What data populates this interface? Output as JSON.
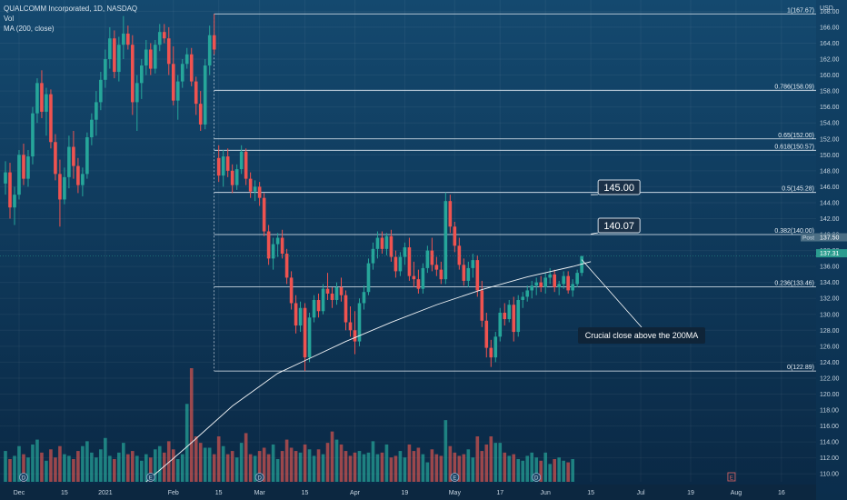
{
  "legend": {
    "symbol": "QUALCOMM Incorporated, 1D, NASDAQ",
    "vol": "Vol",
    "ma": "MA (200, close)"
  },
  "currency": "USD",
  "chart_data": {
    "type": "candlestick",
    "y_axis": {
      "range": [
        109,
        168.5
      ],
      "ticks": [
        110,
        112,
        114,
        116,
        118,
        120,
        122,
        124,
        126,
        128,
        130,
        132,
        134,
        136,
        138,
        140,
        142,
        144,
        146,
        148,
        150,
        152,
        154,
        156,
        158,
        160,
        162,
        164,
        166,
        168
      ],
      "position": "right"
    },
    "x_axis": {
      "labels": [
        {
          "label": "Dec",
          "index": 3
        },
        {
          "label": "15",
          "index": 13
        },
        {
          "label": "2021",
          "index": 22
        },
        {
          "label": "Feb",
          "index": 37
        },
        {
          "label": "15",
          "index": 47
        },
        {
          "label": "Mar",
          "index": 56
        },
        {
          "label": "15",
          "index": 66
        },
        {
          "label": "Apr",
          "index": 77
        },
        {
          "label": "19",
          "index": 88
        },
        {
          "label": "May",
          "index": 99
        },
        {
          "label": "17",
          "index": 109
        },
        {
          "label": "Jun",
          "index": 119
        },
        {
          "label": "15",
          "index": 129
        },
        {
          "label": "Jul",
          "index": 140
        },
        {
          "label": "19",
          "index": 151
        },
        {
          "label": "Aug",
          "index": 161
        },
        {
          "label": "16",
          "index": 171
        }
      ],
      "total_slots": 186
    },
    "grid": true,
    "fib_levels": [
      {
        "label": "1(167.67)",
        "value": 167.67
      },
      {
        "label": "0.786(158.09)",
        "value": 158.09
      },
      {
        "label": "0.65(152.00)",
        "value": 152.0
      },
      {
        "label": "0.618(150.57)",
        "value": 150.57
      },
      {
        "label": "0.5(145.28)",
        "value": 145.28
      },
      {
        "label": "0.382(140.00)",
        "value": 140.0
      },
      {
        "label": "0.236(133.46)",
        "value": 133.46
      },
      {
        "label": "0(122.89)",
        "value": 122.89
      }
    ],
    "price_tags": [
      {
        "label": "Post",
        "value": "137.50",
        "bg": "#4b6e84"
      },
      {
        "label": "",
        "value": "137.31",
        "bg": "#2b9c8f"
      }
    ],
    "callouts": [
      {
        "text": "145.00",
        "value": 145.0
      },
      {
        "text": "140.07",
        "value": 140.07
      }
    ],
    "annotation": "Crucial close above the 200MA",
    "candles": [
      [
        146.4,
        149.2,
        145.0,
        147.8
      ],
      [
        147.8,
        149.0,
        142.0,
        143.4
      ],
      [
        143.4,
        146.0,
        141.2,
        145.0
      ],
      [
        145.0,
        150.6,
        144.4,
        150.0
      ],
      [
        150.0,
        151.4,
        146.2,
        147.0
      ],
      [
        147.0,
        150.6,
        146.0,
        149.8
      ],
      [
        149.8,
        156.0,
        148.8,
        155.2
      ],
      [
        155.2,
        159.6,
        154.0,
        159.0
      ],
      [
        159.0,
        160.6,
        154.6,
        155.4
      ],
      [
        155.4,
        158.4,
        152.4,
        157.6
      ],
      [
        157.6,
        158.2,
        150.8,
        151.6
      ],
      [
        151.6,
        152.6,
        146.8,
        147.6
      ],
      [
        147.6,
        149.4,
        141.0,
        144.4
      ],
      [
        144.4,
        148.4,
        143.8,
        147.2
      ],
      [
        147.2,
        152.4,
        145.8,
        151.0
      ],
      [
        151.0,
        153.0,
        147.0,
        148.6
      ],
      [
        148.6,
        149.6,
        145.2,
        146.2
      ],
      [
        146.2,
        148.4,
        144.8,
        147.6
      ],
      [
        147.6,
        152.8,
        147.0,
        152.2
      ],
      [
        152.2,
        155.2,
        151.2,
        154.4
      ],
      [
        154.4,
        158.0,
        152.4,
        156.6
      ],
      [
        156.6,
        160.4,
        155.6,
        159.4
      ],
      [
        159.4,
        163.2,
        158.4,
        162.0
      ],
      [
        162.0,
        166.0,
        160.8,
        164.6
      ],
      [
        164.6,
        165.6,
        159.6,
        160.4
      ],
      [
        160.4,
        164.8,
        159.2,
        163.8
      ],
      [
        163.8,
        167.4,
        162.0,
        165.2
      ],
      [
        165.2,
        166.2,
        163.2,
        163.8
      ],
      [
        163.8,
        165.0,
        155.0,
        156.6
      ],
      [
        156.6,
        160.0,
        153.0,
        159.0
      ],
      [
        159.0,
        162.0,
        157.0,
        161.2
      ],
      [
        161.2,
        164.4,
        160.0,
        163.2
      ],
      [
        163.2,
        164.0,
        160.0,
        160.8
      ],
      [
        160.8,
        164.4,
        160.2,
        163.8
      ],
      [
        163.8,
        166.4,
        163.0,
        165.4
      ],
      [
        165.4,
        166.4,
        164.0,
        164.6
      ],
      [
        164.6,
        166.0,
        160.0,
        161.4
      ],
      [
        161.4,
        163.6,
        156.2,
        156.8
      ],
      [
        156.8,
        160.0,
        154.4,
        159.2
      ],
      [
        159.2,
        162.0,
        158.4,
        161.4
      ],
      [
        161.4,
        163.4,
        160.8,
        162.6
      ],
      [
        162.6,
        163.4,
        158.6,
        159.2
      ],
      [
        159.2,
        159.8,
        155.0,
        156.4
      ],
      [
        156.4,
        158.0,
        153.0,
        153.8
      ],
      [
        153.8,
        162.0,
        153.2,
        161.2
      ],
      [
        161.2,
        166.2,
        160.0,
        165.0
      ],
      [
        165.0,
        167.67,
        162.6,
        163.2
      ],
      [
        149.6,
        151.2,
        146.6,
        147.4
      ],
      [
        147.4,
        150.6,
        146.0,
        149.8
      ],
      [
        149.8,
        150.8,
        147.2,
        148.0
      ],
      [
        148.0,
        148.8,
        145.2,
        146.2
      ],
      [
        146.2,
        148.8,
        145.6,
        148.2
      ],
      [
        148.2,
        151.2,
        147.6,
        150.4
      ],
      [
        150.4,
        150.8,
        146.2,
        147.0
      ],
      [
        147.0,
        147.8,
        144.6,
        145.4
      ],
      [
        145.4,
        146.8,
        144.2,
        146.0
      ],
      [
        146.0,
        146.6,
        143.6,
        144.6
      ],
      [
        144.6,
        145.2,
        139.8,
        140.4
      ],
      [
        140.4,
        141.2,
        136.2,
        137.0
      ],
      [
        137.0,
        139.6,
        135.6,
        138.8
      ],
      [
        138.8,
        140.2,
        137.2,
        139.6
      ],
      [
        139.6,
        140.6,
        137.0,
        137.6
      ],
      [
        137.6,
        138.2,
        133.8,
        134.6
      ],
      [
        134.6,
        135.4,
        130.6,
        131.4
      ],
      [
        131.4,
        132.4,
        127.6,
        128.6
      ],
      [
        128.6,
        131.6,
        127.8,
        130.8
      ],
      [
        130.8,
        131.4,
        122.89,
        124.6
      ],
      [
        124.6,
        130.2,
        124.0,
        129.6
      ],
      [
        129.6,
        132.4,
        129.0,
        131.8
      ],
      [
        131.8,
        132.6,
        129.6,
        130.4
      ],
      [
        130.4,
        133.8,
        130.0,
        133.2
      ],
      [
        133.2,
        135.2,
        131.8,
        132.6
      ],
      [
        132.6,
        133.4,
        130.8,
        131.8
      ],
      [
        131.8,
        134.0,
        131.2,
        133.4
      ],
      [
        133.4,
        134.6,
        131.6,
        132.4
      ],
      [
        132.4,
        133.0,
        128.0,
        129.0
      ],
      [
        129.0,
        131.0,
        127.2,
        128.0
      ],
      [
        128.0,
        130.4,
        125.0,
        126.6
      ],
      [
        126.6,
        132.0,
        126.0,
        131.4
      ],
      [
        131.4,
        133.6,
        130.6,
        132.8
      ],
      [
        132.8,
        137.0,
        132.4,
        136.4
      ],
      [
        136.4,
        139.0,
        135.6,
        138.2
      ],
      [
        138.2,
        140.4,
        137.0,
        139.6
      ],
      [
        139.6,
        140.4,
        137.6,
        138.2
      ],
      [
        138.2,
        140.2,
        137.4,
        139.8
      ],
      [
        139.8,
        140.6,
        136.6,
        137.2
      ],
      [
        137.2,
        138.0,
        134.6,
        135.4
      ],
      [
        135.4,
        137.8,
        134.8,
        137.2
      ],
      [
        137.2,
        139.0,
        136.2,
        138.4
      ],
      [
        138.4,
        139.6,
        134.2,
        134.8
      ],
      [
        134.8,
        136.6,
        133.4,
        134.4
      ],
      [
        134.4,
        135.6,
        132.6,
        133.2
      ],
      [
        133.2,
        136.4,
        132.6,
        135.8
      ],
      [
        135.8,
        138.6,
        135.2,
        138.0
      ],
      [
        138.0,
        139.6,
        135.4,
        136.2
      ],
      [
        136.2,
        137.2,
        134.8,
        135.6
      ],
      [
        135.6,
        136.6,
        133.8,
        134.4
      ],
      [
        134.4,
        145.28,
        133.8,
        144.2
      ],
      [
        144.2,
        145.0,
        140.2,
        141.0
      ],
      [
        141.0,
        141.6,
        137.8,
        138.6
      ],
      [
        138.6,
        139.6,
        135.6,
        136.2
      ],
      [
        136.2,
        137.0,
        133.6,
        134.2
      ],
      [
        134.2,
        136.6,
        133.4,
        135.8
      ],
      [
        135.8,
        137.6,
        134.6,
        136.8
      ],
      [
        136.8,
        137.4,
        132.2,
        133.0
      ],
      [
        133.0,
        134.2,
        128.4,
        129.2
      ],
      [
        129.2,
        130.2,
        124.6,
        125.8
      ],
      [
        125.8,
        126.8,
        123.4,
        124.6
      ],
      [
        124.6,
        127.8,
        124.0,
        127.2
      ],
      [
        127.2,
        130.8,
        126.6,
        130.2
      ],
      [
        130.2,
        131.4,
        128.6,
        129.4
      ],
      [
        129.4,
        131.8,
        129.0,
        131.2
      ],
      [
        131.2,
        132.2,
        126.6,
        127.8
      ],
      [
        127.8,
        132.4,
        127.2,
        131.8
      ],
      [
        131.8,
        132.8,
        130.8,
        132.2
      ],
      [
        132.2,
        133.6,
        131.6,
        133.0
      ],
      [
        133.0,
        134.2,
        132.0,
        133.6
      ],
      [
        133.6,
        134.6,
        132.4,
        134.0
      ],
      [
        134.0,
        134.8,
        132.8,
        133.4
      ],
      [
        133.4,
        135.2,
        132.6,
        134.6
      ],
      [
        134.6,
        135.8,
        133.8,
        135.0
      ],
      [
        135.0,
        135.6,
        132.8,
        133.4
      ],
      [
        133.4,
        134.2,
        132.4,
        133.8
      ],
      [
        133.8,
        135.4,
        133.2,
        134.8
      ],
      [
        134.8,
        135.4,
        132.6,
        133.0
      ],
      [
        133.0,
        134.4,
        132.2,
        133.8
      ],
      [
        133.8,
        135.6,
        133.4,
        135.2
      ],
      [
        135.2,
        137.31,
        134.8,
        137.31
      ]
    ],
    "volume": [
      19,
      14,
      16,
      22,
      17,
      15,
      23,
      26,
      18,
      13,
      20,
      15,
      22,
      17,
      16,
      14,
      19,
      22,
      25,
      18,
      15,
      20,
      27,
      16,
      14,
      18,
      24,
      17,
      19,
      16,
      13,
      17,
      15,
      20,
      22,
      18,
      25,
      20,
      14,
      17,
      48,
      70,
      28,
      24,
      21,
      21,
      17,
      28,
      22,
      17,
      19,
      15,
      24,
      30,
      17,
      16,
      19,
      21,
      17,
      23,
      14,
      19,
      26,
      21,
      19,
      18,
      23,
      20,
      16,
      20,
      17,
      24,
      31,
      26,
      23,
      19,
      16,
      18,
      19,
      17,
      18,
      25,
      17,
      18,
      23,
      15,
      16,
      19,
      15,
      23,
      19,
      21,
      17,
      12,
      20,
      17,
      16,
      38,
      22,
      18,
      16,
      17,
      20,
      15,
      28,
      19,
      23,
      28,
      24,
      24,
      18,
      16,
      17,
      14,
      13,
      16,
      18,
      15,
      13,
      18,
      11,
      14,
      15,
      13,
      12,
      14
    ],
    "volume_colors": [
      "#d9544f",
      "#26a69a"
    ],
    "ma_200": [
      [
        31,
        109.0
      ],
      [
        40,
        113.4
      ],
      [
        50,
        118.5
      ],
      [
        60,
        122.6
      ],
      [
        66,
        124.2
      ],
      [
        75,
        126.6
      ],
      [
        85,
        129.0
      ],
      [
        95,
        131.2
      ],
      [
        105,
        133.1
      ],
      [
        115,
        134.7
      ],
      [
        125,
        136.0
      ],
      [
        129,
        136.6
      ]
    ],
    "earnings_markers": [
      {
        "index": 4,
        "label": "D"
      },
      {
        "index": 32,
        "label": "E"
      },
      {
        "index": 56,
        "label": "D"
      },
      {
        "index": 99,
        "label": "E"
      },
      {
        "index": 117,
        "label": "D"
      }
    ],
    "future_marker": {
      "index": 160,
      "label": "E"
    }
  }
}
